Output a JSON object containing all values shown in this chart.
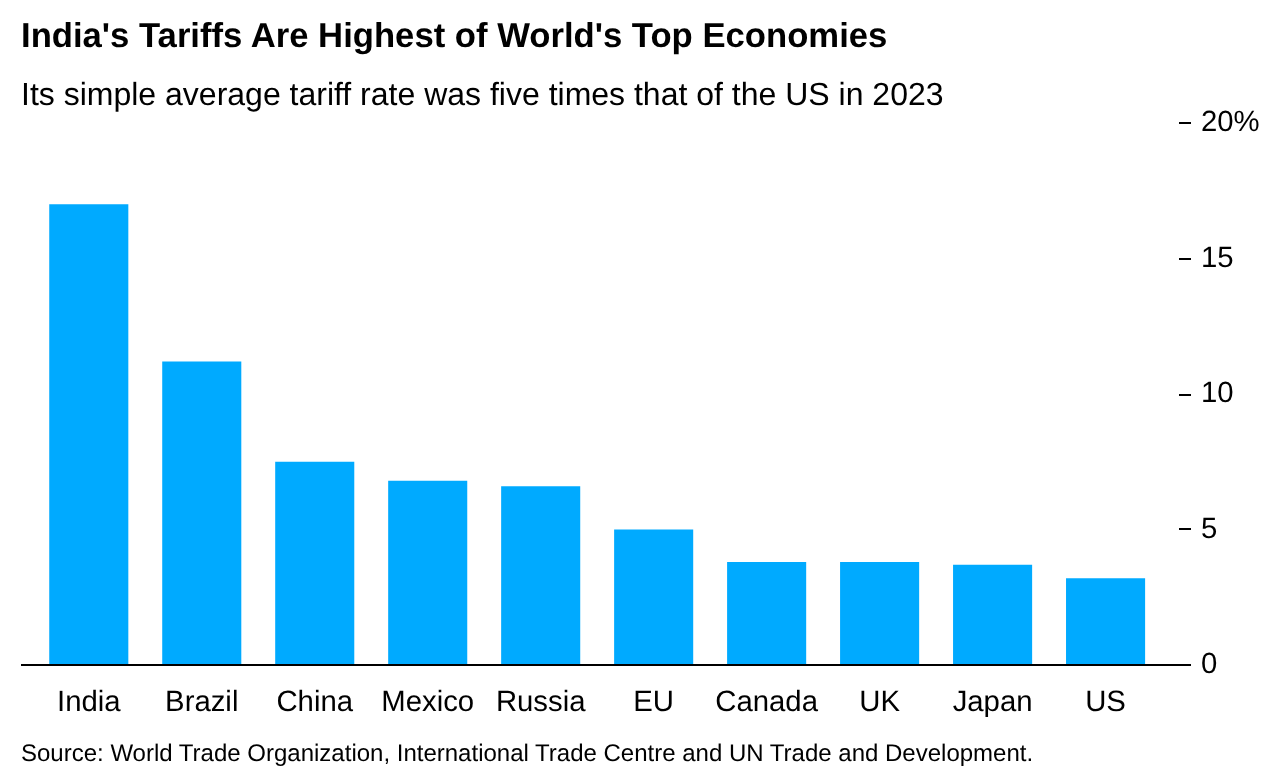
{
  "chart_data": {
    "type": "bar",
    "title": "India's Tariffs Are Highest of World's Top Economies",
    "subtitle": "Its simple average tariff rate was five times that of the US in 2023",
    "categories": [
      "India",
      "Brazil",
      "China",
      "Mexico",
      "Russia",
      "EU",
      "Canada",
      "UK",
      "Japan",
      "US"
    ],
    "values": [
      17.0,
      11.2,
      7.5,
      6.8,
      6.6,
      5.0,
      3.8,
      3.8,
      3.7,
      3.2
    ],
    "color": "#00aaff",
    "ylim": [
      0,
      20
    ],
    "yticks": [
      0,
      5,
      10,
      15,
      {
        "value": 20,
        "label": "20%"
      }
    ],
    "grid": false,
    "annotations": [
      "Source: World Trade Organization, International Trade Centre and UN Trade and Development."
    ]
  }
}
